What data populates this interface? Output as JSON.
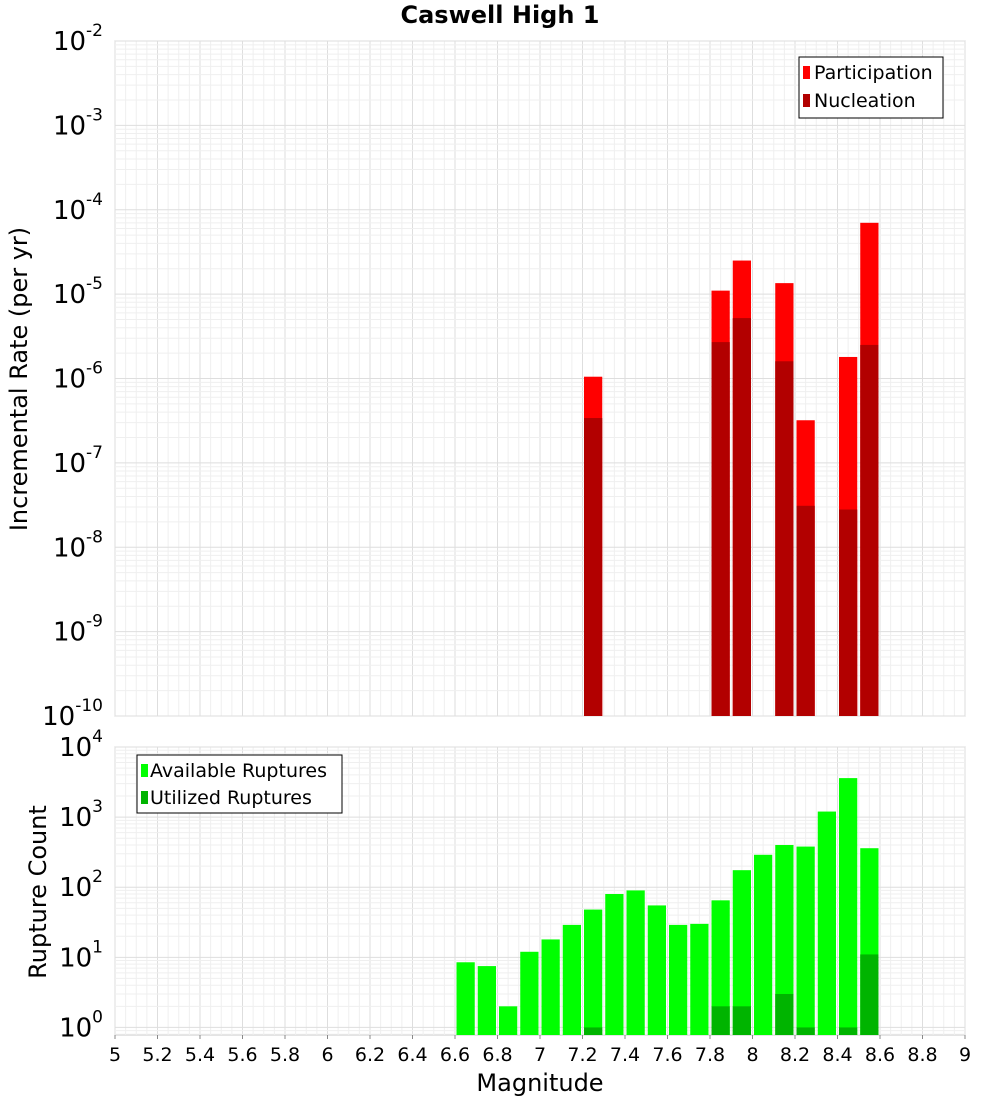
{
  "chart_data": [
    {
      "type": "bar",
      "title": "Caswell High 1",
      "ylabel": "Incremental Rate (per yr)",
      "yscale": "log",
      "ylim": [
        1e-10,
        0.01
      ],
      "y_tick_exponents": [
        "-10",
        "-9",
        "-8",
        "-7",
        "-6",
        "-5",
        "-4",
        "-3",
        "-2"
      ],
      "xlim": [
        5,
        9
      ],
      "grid": true,
      "legend_position": "top-right",
      "x": [
        7.25,
        7.85,
        7.95,
        8.15,
        8.25,
        8.45,
        8.55
      ],
      "series": [
        {
          "name": "Participation",
          "color": "#ff0000",
          "values": [
            1.05e-06,
            1.1e-05,
            2.5e-05,
            1.35e-05,
            3.2e-07,
            1.8e-06,
            7e-05
          ]
        },
        {
          "name": "Nucleation",
          "color": "#b20000",
          "values": [
            3.4e-07,
            2.7e-06,
            5.2e-06,
            1.6e-06,
            3.1e-08,
            2.8e-08,
            2.5e-06
          ]
        }
      ]
    },
    {
      "type": "bar",
      "ylabel": "Rupture Count",
      "xlabel": "Magnitude",
      "yscale": "log",
      "ylim": [
        0.78,
        10000
      ],
      "y_tick_exponents": [
        "0",
        "1",
        "2",
        "3",
        "4"
      ],
      "xlim": [
        5,
        9
      ],
      "x_ticks": [
        "5",
        "5.2",
        "5.4",
        "5.6",
        "5.8",
        "6",
        "6.2",
        "6.4",
        "6.6",
        "6.8",
        "7",
        "7.2",
        "7.4",
        "7.6",
        "7.8",
        "8",
        "8.2",
        "8.4",
        "8.6",
        "8.8",
        "9"
      ],
      "grid": true,
      "legend_position": "top-left",
      "x": [
        6.65,
        6.75,
        6.85,
        6.95,
        7.05,
        7.15,
        7.25,
        7.35,
        7.45,
        7.55,
        7.65,
        7.75,
        7.85,
        7.95,
        8.05,
        8.15,
        8.25,
        8.35,
        8.45,
        8.55
      ],
      "series": [
        {
          "name": "Available Ruptures",
          "color": "#00ff00",
          "values": [
            8.5,
            7.5,
            2,
            12,
            18,
            29,
            48,
            80,
            90,
            55,
            29,
            30,
            65,
            175,
            290,
            400,
            380,
            1200,
            3600,
            360
          ]
        },
        {
          "name": "Utilized Ruptures",
          "color": "#00b400",
          "values": [
            0,
            0,
            0,
            0,
            0,
            0,
            1,
            0,
            0,
            0,
            0,
            0,
            2,
            2,
            0,
            3,
            1,
            0,
            1,
            11
          ]
        }
      ]
    }
  ]
}
